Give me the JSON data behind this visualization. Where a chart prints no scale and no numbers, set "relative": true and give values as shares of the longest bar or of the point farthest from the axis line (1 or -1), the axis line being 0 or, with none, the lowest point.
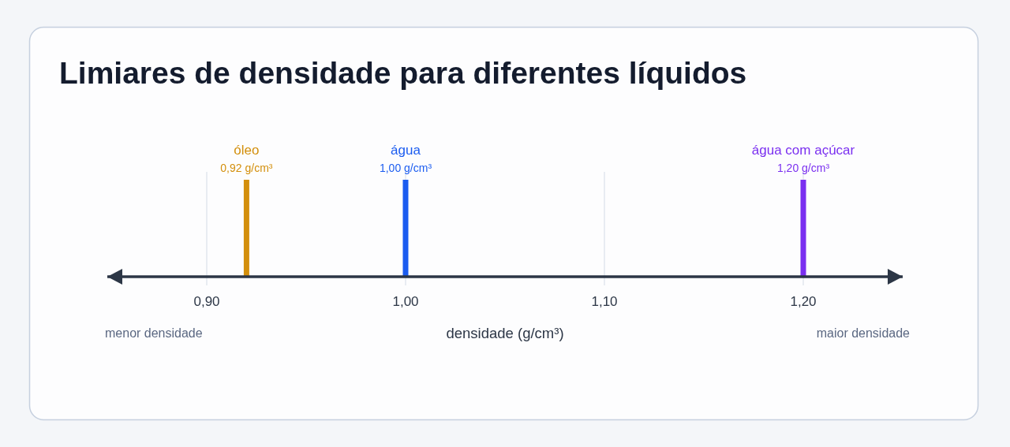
{
  "chart_data": {
    "type": "bar",
    "relative": true,
    "title": "Limiares de densidade para diferentes líquidos",
    "xlabel": "densidade (g/cm³)",
    "xlim": [
      0.85,
      1.25
    ],
    "xticks": [
      {
        "value": 0.9,
        "label": "0,90"
      },
      {
        "value": 1.0,
        "label": "1,00"
      },
      {
        "value": 1.1,
        "label": "1,10"
      },
      {
        "value": 1.2,
        "label": "1,20"
      }
    ],
    "grid": "x",
    "series": [
      {
        "name": "óleo",
        "color": "#d38f0c",
        "x": [
          0.92
        ],
        "values": [
          1
        ]
      },
      {
        "name": "água",
        "color": "#1b5cf0",
        "x": [
          1.0
        ],
        "values": [
          1
        ]
      },
      {
        "name": "água com açúcar",
        "color": "#7a2ff0",
        "x": [
          1.2
        ],
        "values": [
          1
        ]
      }
    ],
    "annotations": [
      {
        "text": "0,92 g/cm³",
        "x": 0.92,
        "y": 1
      },
      {
        "text": "1,00 g/cm³",
        "x": 1.0,
        "y": 1
      },
      {
        "text": "1,20 g/cm³",
        "x": 1.2,
        "y": 1
      },
      "menor densidade",
      "maior densidade"
    ]
  }
}
